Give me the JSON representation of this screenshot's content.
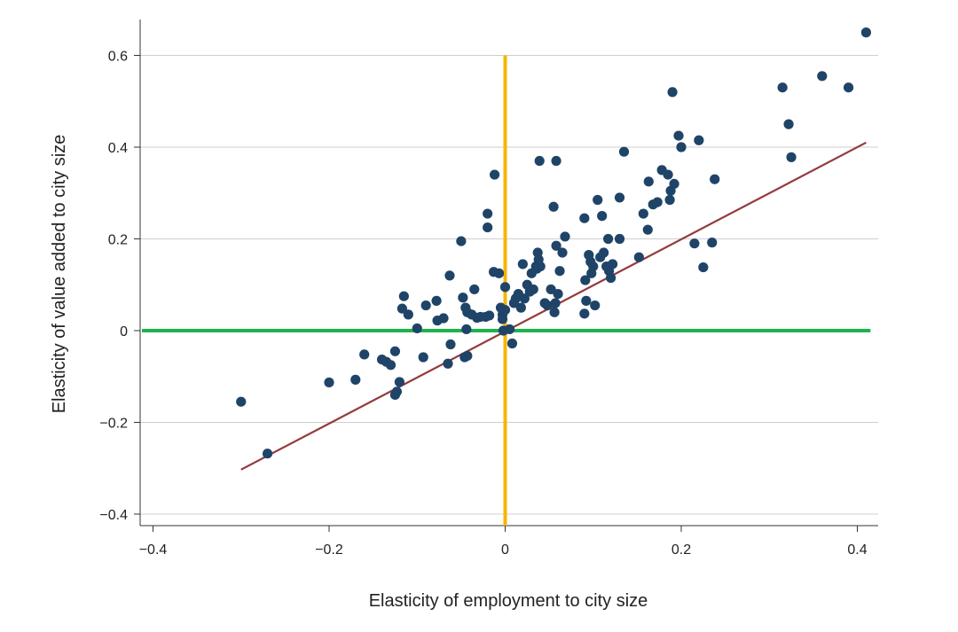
{
  "chart_data": {
    "type": "scatter",
    "title": "",
    "xlabel": "Elasticity of employment to city size",
    "ylabel": "Elasticity of value added to city size",
    "xlim": [
      -0.415,
      0.425
    ],
    "ylim": [
      -0.43,
      0.68
    ],
    "xticks": [
      -0.4,
      -0.2,
      0,
      0.2,
      0.4
    ],
    "xtick_labels": [
      "−0.4",
      "−0.2",
      "0",
      "0.2",
      "0.4"
    ],
    "yticks": [
      -0.4,
      -0.2,
      0,
      0.2,
      0.4,
      0.6
    ],
    "ytick_labels": [
      "−0.4",
      "−0.2",
      "0",
      "0.2",
      "0.4",
      "0.6"
    ],
    "grid": "horizontal",
    "legend": "none",
    "colors": {
      "points": "#1f4468",
      "fit_line": "#943a3e",
      "vertical_reference": "#f7b500",
      "horizontal_reference": "#1eb24c",
      "grid": "#cfcfcf",
      "axis": "#333333"
    },
    "reference_lines": [
      {
        "orientation": "vertical",
        "x": 0,
        "y_range": [
          -0.43,
          0.6
        ]
      },
      {
        "orientation": "horizontal",
        "y": 0,
        "x_range": [
          -0.415,
          0.42
        ]
      }
    ],
    "fit_line": {
      "x": [
        -0.3,
        0.41
      ],
      "y": [
        -0.303,
        0.41
      ]
    },
    "points": [
      [
        -0.3,
        -0.155
      ],
      [
        -0.27,
        -0.268
      ],
      [
        -0.2,
        -0.113
      ],
      [
        -0.17,
        -0.107
      ],
      [
        -0.16,
        -0.052
      ],
      [
        -0.14,
        -0.063
      ],
      [
        -0.135,
        -0.068
      ],
      [
        -0.13,
        -0.075
      ],
      [
        -0.125,
        -0.045
      ],
      [
        -0.125,
        -0.14
      ],
      [
        -0.123,
        -0.133
      ],
      [
        -0.12,
        -0.112
      ],
      [
        -0.117,
        0.048
      ],
      [
        -0.115,
        0.075
      ],
      [
        -0.11,
        0.035
      ],
      [
        -0.1,
        0.005
      ],
      [
        -0.093,
        -0.058
      ],
      [
        -0.09,
        0.055
      ],
      [
        -0.078,
        0.065
      ],
      [
        -0.077,
        0.022
      ],
      [
        -0.07,
        0.027
      ],
      [
        -0.065,
        -0.072
      ],
      [
        -0.063,
        0.12
      ],
      [
        -0.062,
        -0.03
      ],
      [
        -0.05,
        0.195
      ],
      [
        -0.048,
        0.072
      ],
      [
        -0.046,
        -0.058
      ],
      [
        -0.045,
        0.05
      ],
      [
        -0.044,
        0.003
      ],
      [
        -0.043,
        0.04
      ],
      [
        -0.043,
        -0.055
      ],
      [
        -0.038,
        0.035
      ],
      [
        -0.035,
        0.09
      ],
      [
        -0.032,
        0.028
      ],
      [
        -0.028,
        0.03
      ],
      [
        -0.022,
        0.03
      ],
      [
        -0.02,
        0.255
      ],
      [
        -0.02,
        0.225
      ],
      [
        -0.018,
        0.033
      ],
      [
        -0.013,
        0.128
      ],
      [
        -0.012,
        0.34
      ],
      [
        -0.007,
        0.125
      ],
      [
        -0.005,
        0.05
      ],
      [
        -0.003,
        0.035
      ],
      [
        -0.003,
        0.025
      ],
      [
        -0.002,
        0.0
      ],
      [
        0.0,
        0.095
      ],
      [
        0.0,
        0.045
      ],
      [
        0.005,
        0.003
      ],
      [
        0.008,
        -0.028
      ],
      [
        0.01,
        0.06
      ],
      [
        0.012,
        0.07
      ],
      [
        0.015,
        0.08
      ],
      [
        0.018,
        0.05
      ],
      [
        0.02,
        0.145
      ],
      [
        0.022,
        0.07
      ],
      [
        0.025,
        0.1
      ],
      [
        0.028,
        0.085
      ],
      [
        0.03,
        0.125
      ],
      [
        0.032,
        0.09
      ],
      [
        0.035,
        0.14
      ],
      [
        0.036,
        0.135
      ],
      [
        0.037,
        0.17
      ],
      [
        0.038,
        0.155
      ],
      [
        0.039,
        0.37
      ],
      [
        0.04,
        0.14
      ],
      [
        0.045,
        0.06
      ],
      [
        0.048,
        0.055
      ],
      [
        0.052,
        0.09
      ],
      [
        0.055,
        0.27
      ],
      [
        0.056,
        0.04
      ],
      [
        0.057,
        0.06
      ],
      [
        0.058,
        0.37
      ],
      [
        0.058,
        0.185
      ],
      [
        0.06,
        0.08
      ],
      [
        0.062,
        0.13
      ],
      [
        0.065,
        0.17
      ],
      [
        0.068,
        0.205
      ],
      [
        0.09,
        0.245
      ],
      [
        0.09,
        0.037
      ],
      [
        0.091,
        0.11
      ],
      [
        0.092,
        0.065
      ],
      [
        0.095,
        0.165
      ],
      [
        0.097,
        0.15
      ],
      [
        0.098,
        0.125
      ],
      [
        0.1,
        0.14
      ],
      [
        0.102,
        0.055
      ],
      [
        0.105,
        0.285
      ],
      [
        0.108,
        0.16
      ],
      [
        0.11,
        0.25
      ],
      [
        0.112,
        0.17
      ],
      [
        0.115,
        0.14
      ],
      [
        0.117,
        0.2
      ],
      [
        0.118,
        0.13
      ],
      [
        0.12,
        0.115
      ],
      [
        0.122,
        0.145
      ],
      [
        0.13,
        0.29
      ],
      [
        0.13,
        0.2
      ],
      [
        0.135,
        0.39
      ],
      [
        0.152,
        0.16
      ],
      [
        0.157,
        0.255
      ],
      [
        0.162,
        0.22
      ],
      [
        0.163,
        0.325
      ],
      [
        0.168,
        0.275
      ],
      [
        0.173,
        0.28
      ],
      [
        0.178,
        0.35
      ],
      [
        0.185,
        0.34
      ],
      [
        0.187,
        0.285
      ],
      [
        0.188,
        0.305
      ],
      [
        0.19,
        0.52
      ],
      [
        0.192,
        0.32
      ],
      [
        0.197,
        0.425
      ],
      [
        0.2,
        0.4
      ],
      [
        0.215,
        0.19
      ],
      [
        0.22,
        0.415
      ],
      [
        0.225,
        0.138
      ],
      [
        0.235,
        0.192
      ],
      [
        0.238,
        0.33
      ],
      [
        0.315,
        0.53
      ],
      [
        0.322,
        0.45
      ],
      [
        0.325,
        0.378
      ],
      [
        0.36,
        0.555
      ],
      [
        0.39,
        0.53
      ],
      [
        0.41,
        0.65
      ]
    ]
  }
}
